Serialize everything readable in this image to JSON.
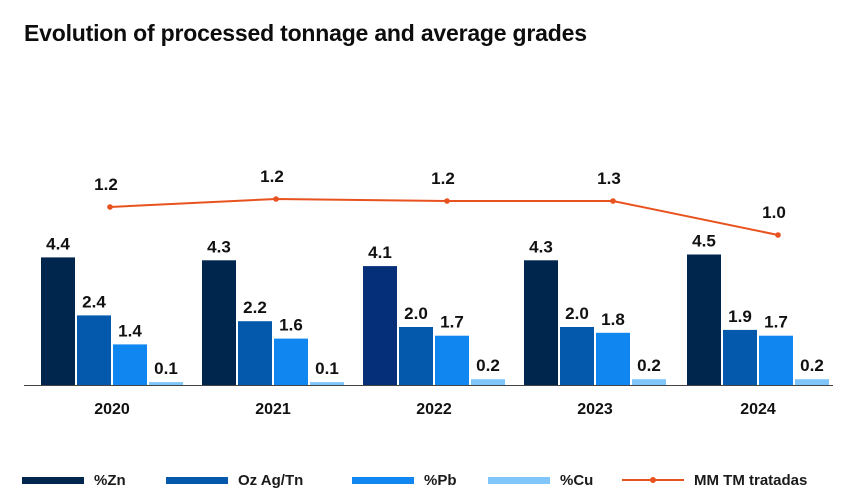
{
  "title": "Evolution of processed tonnage and average grades",
  "colors": {
    "zn": "#00264d",
    "zn_2022": "#062f7a",
    "ag": "#0459ad",
    "pb": "#0f86f0",
    "cu": "#80c6fb",
    "line": "#e8521e",
    "axis": "#444444"
  },
  "chart_data": {
    "type": "bar",
    "categories": [
      "2020",
      "2021",
      "2022",
      "2023",
      "2024"
    ],
    "series": [
      {
        "name": "%Zn",
        "key": "zn",
        "values": [
          4.4,
          4.3,
          4.1,
          4.3,
          4.5
        ],
        "labels": [
          "4.4",
          "4.3",
          "4.1",
          "4.3",
          "4.5"
        ]
      },
      {
        "name": "Oz Ag/Tn",
        "key": "ag",
        "values": [
          2.4,
          2.2,
          2.0,
          2.0,
          1.9
        ],
        "labels": [
          "2.4",
          "2.2",
          "2.0",
          "2.0",
          "1.9"
        ]
      },
      {
        "name": "%Pb",
        "key": "pb",
        "values": [
          1.4,
          1.6,
          1.7,
          1.8,
          1.7
        ],
        "labels": [
          "1.4",
          "1.6",
          "1.7",
          "1.8",
          "1.7"
        ]
      },
      {
        "name": "%Cu",
        "key": "cu",
        "values": [
          0.1,
          0.1,
          0.2,
          0.2,
          0.2
        ],
        "labels": [
          "0.1",
          "0.1",
          "0.2",
          "0.2",
          "0.2"
        ]
      }
    ],
    "line_series": {
      "name": "MM TM tratadas",
      "key": "line",
      "values": [
        1.2,
        1.2,
        1.2,
        1.3,
        1.0
      ],
      "labels": [
        "1.2",
        "1.2",
        "1.2",
        "1.3",
        "1.0"
      ]
    },
    "legend": [
      "%Zn",
      "Oz Ag/Tn",
      "%Pb",
      "%Cu",
      "MM TM tratadas"
    ],
    "legend_position": "bottom",
    "grid": false
  }
}
